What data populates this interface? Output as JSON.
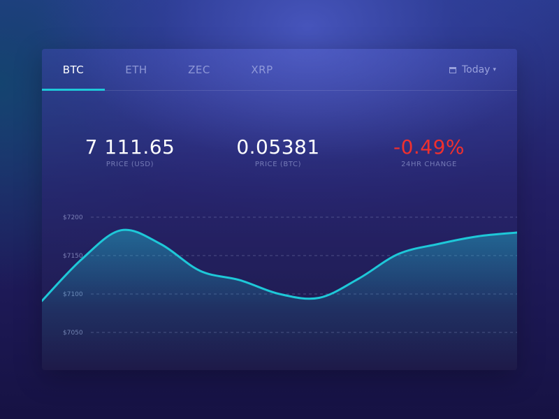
{
  "tabs": [
    {
      "label": "BTC",
      "active": true
    },
    {
      "label": "ETH",
      "active": false
    },
    {
      "label": "ZEC",
      "active": false
    },
    {
      "label": "XRP",
      "active": false
    }
  ],
  "date_filter": {
    "label": "Today",
    "icon": "calendar-icon"
  },
  "stats": [
    {
      "value": "7 111.65",
      "label": "PRICE (USD)"
    },
    {
      "value": "0.05381",
      "label": "PRICE (BTC)"
    },
    {
      "value": "-0.49%",
      "label": "24HR CHANGE",
      "color": "#f0302e"
    }
  ],
  "colors": {
    "accent": "#1ec8d8",
    "negative": "#f0302e"
  },
  "chart_data": {
    "type": "area",
    "title": "",
    "xlabel": "",
    "ylabel": "",
    "yticks": [
      7200,
      7150,
      7100,
      7050
    ],
    "ytick_labels": [
      "$7200",
      "$7150",
      "$7100",
      "$7050"
    ],
    "ylim": [
      7050,
      7200
    ],
    "grid": true,
    "series": [
      {
        "x": [
          0,
          1,
          2,
          3,
          4,
          5,
          6,
          7,
          8,
          9,
          10,
          11,
          12
        ],
        "y": [
          7091,
          7145,
          7183,
          7165,
          7130,
          7118,
          7100,
          7095,
          7120,
          7152,
          7165,
          7175,
          7180
        ]
      }
    ]
  }
}
